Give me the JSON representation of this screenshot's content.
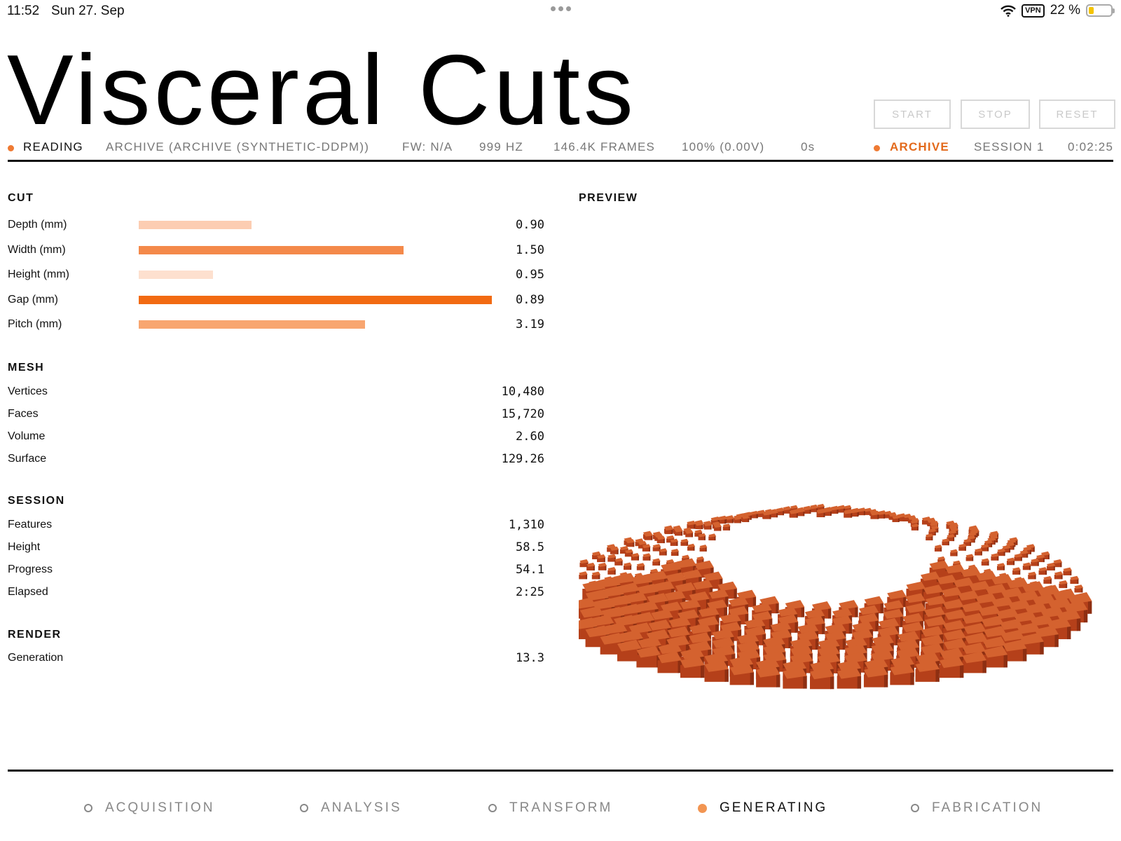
{
  "status_bar": {
    "time": "11:52",
    "date": "Sun 27. Sep",
    "vpn": "VPN",
    "battery": "22 %",
    "battery_level": 0.22
  },
  "app": {
    "title": "Visceral Cuts"
  },
  "controls": {
    "start": "START",
    "stop": "STOP",
    "reset": "RESET"
  },
  "info_bar": {
    "state": "READING",
    "source": "ARCHIVE (ARCHIVE (SYNTHETIC-DDPM))",
    "firmware": "FW: N/A",
    "rate": "999 HZ",
    "frames": "146.4K FRAMES",
    "level": "100% (0.00V)",
    "latency": "0s",
    "mode": "ARCHIVE",
    "session": "SESSION 1",
    "clock": "0:02:25"
  },
  "colors": {
    "accent": "#ef7a33",
    "mode_text": "#e36a1c",
    "brick": "#b5401a"
  },
  "cut": {
    "title": "CUT",
    "rows": [
      {
        "label": "Depth (mm)",
        "value": "0.90",
        "fill": 0.32,
        "color": "#fccdb2"
      },
      {
        "label": "Width (mm)",
        "value": "1.50",
        "fill": 0.75,
        "color": "#f4894a"
      },
      {
        "label": "Height (mm)",
        "value": "0.95",
        "fill": 0.21,
        "color": "#fde0cf"
      },
      {
        "label": "Gap (mm)",
        "value": "0.89",
        "fill": 1.0,
        "color": "#f26a12"
      },
      {
        "label": "Pitch (mm)",
        "value": "3.19",
        "fill": 0.64,
        "color": "#f8a670"
      }
    ]
  },
  "mesh": {
    "title": "MESH",
    "rows": [
      {
        "label": "Vertices",
        "value": "10,480"
      },
      {
        "label": "Faces",
        "value": "15,720"
      },
      {
        "label": "Volume",
        "value": "2.60"
      },
      {
        "label": "Surface",
        "value": "129.26"
      }
    ]
  },
  "session": {
    "title": "SESSION",
    "rows": [
      {
        "label": "Features",
        "value": "1,310"
      },
      {
        "label": "Height",
        "value": "58.5"
      },
      {
        "label": "Progress",
        "value": "54.1"
      },
      {
        "label": "Elapsed",
        "value": "2:25"
      }
    ]
  },
  "render": {
    "title": "RENDER",
    "rows": [
      {
        "label": "Generation",
        "value": "13.3"
      }
    ]
  },
  "preview": {
    "title": "PREVIEW"
  },
  "nav": [
    {
      "label": "ACQUISITION",
      "active": false
    },
    {
      "label": "ANALYSIS",
      "active": false
    },
    {
      "label": "TRANSFORM",
      "active": false
    },
    {
      "label": "GENERATING",
      "active": true
    },
    {
      "label": "FABRICATION",
      "active": false
    }
  ]
}
